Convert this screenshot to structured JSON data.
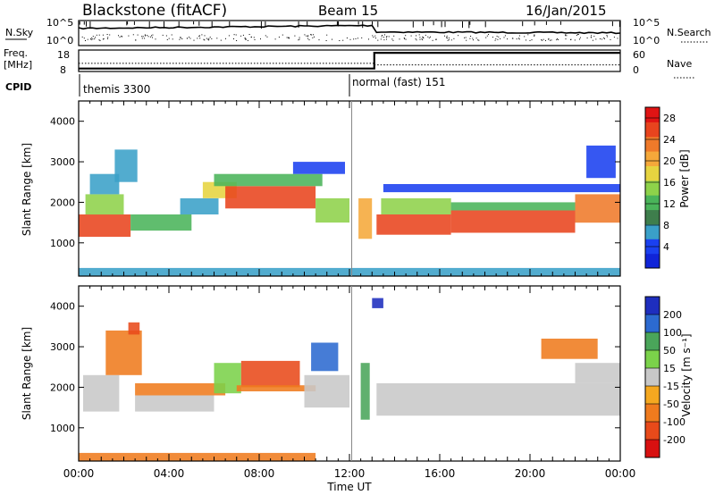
{
  "header": {
    "station": "Blackstone (fitACF)",
    "beam": "Beam 15",
    "date": "16/Jan/2015"
  },
  "noise_panel": {
    "left_label": "N.Sky",
    "right_label": "N.Search",
    "left_ticks": [
      "10^5",
      "10^0"
    ],
    "right_ticks": [
      "10^5",
      "10^0"
    ]
  },
  "freq_panel": {
    "left_label_1": "Freq.",
    "left_label_2": "[MHz]",
    "right_label": "Nave",
    "left_ticks": [
      "18",
      "8"
    ],
    "right_ticks": [
      "60",
      "0"
    ],
    "freq_series": {
      "x_hours": [
        0,
        13.1,
        13.1,
        24
      ],
      "values": [
        9.5,
        9.5,
        17.5,
        17.5
      ]
    },
    "nave_series": {
      "x_hours": [
        0,
        13.1,
        13.1,
        24
      ],
      "values": [
        25,
        25,
        20,
        20
      ]
    }
  },
  "cpid": {
    "label": "CPID",
    "modes": [
      {
        "name": "themis 3300",
        "start_hour": 0
      },
      {
        "name": "normal (fast) 151",
        "start_hour": 12.1
      }
    ]
  },
  "chart_data": [
    {
      "type": "heatmap",
      "name": "Power",
      "ylabel": "Slant Range [km]",
      "yticks": [
        1000,
        2000,
        3000,
        4000
      ],
      "ylim": [
        180,
        4500
      ],
      "xlim_hours": [
        0,
        24
      ],
      "xticks": [
        "00:00",
        "04:00",
        "08:00",
        "12:00",
        "16:00",
        "20:00",
        "00:00"
      ],
      "colorbar": {
        "label": "Power [dB]",
        "ticks": [
          "28",
          "24",
          "20",
          "16",
          "12",
          "8",
          "4"
        ],
        "range": [
          0,
          30
        ],
        "colors": [
          "#1024d8",
          "#1a40f0",
          "#3aa0c8",
          "#3e7e4c",
          "#4ab45a",
          "#8ed24a",
          "#e6d440",
          "#f5a83a",
          "#ef7a2a",
          "#e8441e",
          "#e01414"
        ]
      },
      "bands": [
        {
          "start": 0.0,
          "end": 2.3,
          "range_start": 1150,
          "range_end": 1700,
          "value": 27
        },
        {
          "start": 0.3,
          "end": 2.0,
          "range_start": 1700,
          "range_end": 2200,
          "value": 14
        },
        {
          "start": 0.5,
          "end": 1.8,
          "range_start": 2200,
          "range_end": 2700,
          "value": 7
        },
        {
          "start": 1.6,
          "end": 2.6,
          "range_start": 2500,
          "range_end": 3300,
          "value": 6
        },
        {
          "start": 2.3,
          "end": 5.0,
          "range_start": 1300,
          "range_end": 1700,
          "value": 12
        },
        {
          "start": 4.5,
          "end": 6.2,
          "range_start": 1700,
          "range_end": 2100,
          "value": 8
        },
        {
          "start": 5.5,
          "end": 7.0,
          "range_start": 2100,
          "range_end": 2500,
          "value": 19
        },
        {
          "start": 6.5,
          "end": 10.5,
          "range_start": 1850,
          "range_end": 2400,
          "value": 26
        },
        {
          "start": 6.0,
          "end": 10.8,
          "range_start": 2400,
          "range_end": 2700,
          "value": 11
        },
        {
          "start": 9.5,
          "end": 11.8,
          "range_start": 2700,
          "range_end": 3000,
          "value": 5
        },
        {
          "start": 10.5,
          "end": 12.0,
          "range_start": 1500,
          "range_end": 2100,
          "value": 16
        },
        {
          "start": 12.4,
          "end": 13.0,
          "range_start": 1100,
          "range_end": 2100,
          "value": 20
        },
        {
          "start": 13.2,
          "end": 16.5,
          "range_start": 1200,
          "range_end": 1700,
          "value": 27
        },
        {
          "start": 13.4,
          "end": 16.5,
          "range_start": 1700,
          "range_end": 2100,
          "value": 14
        },
        {
          "start": 16.5,
          "end": 22.0,
          "range_start": 1250,
          "range_end": 1800,
          "value": 25
        },
        {
          "start": 16.5,
          "end": 22.0,
          "range_start": 1800,
          "range_end": 2000,
          "value": 12
        },
        {
          "start": 22.0,
          "end": 24.0,
          "range_start": 1500,
          "range_end": 2200,
          "value": 22
        },
        {
          "start": 13.5,
          "end": 24.0,
          "range_start": 2250,
          "range_end": 2450,
          "value": 4
        },
        {
          "start": 22.5,
          "end": 23.8,
          "range_start": 2600,
          "range_end": 3400,
          "value": 4
        },
        {
          "start": 0.0,
          "end": 24.0,
          "range_start": 180,
          "range_end": 380,
          "value": 6
        }
      ]
    },
    {
      "type": "heatmap",
      "name": "Velocity",
      "ylabel": "Slant Range [km]",
      "yticks": [
        1000,
        2000,
        3000,
        4000
      ],
      "ylim": [
        180,
        4500
      ],
      "xlim_hours": [
        0,
        24
      ],
      "xticks": [
        "00:00",
        "04:00",
        "08:00",
        "12:00",
        "16:00",
        "20:00",
        "00:00"
      ],
      "xlabel": "Time UT",
      "colorbar": {
        "label": "Velocity [m s⁻¹]",
        "ticks": [
          "200",
          "100",
          "50",
          "15",
          "-15",
          "-50",
          "-100",
          "-200"
        ],
        "colors": [
          "#1e2ebe",
          "#2c6ad0",
          "#4aa55a",
          "#7bd24a",
          "#c8c8c8",
          "#f5a820",
          "#ef7b1e",
          "#e84a1a",
          "#d81010"
        ]
      },
      "bands": [
        {
          "start": 0.2,
          "end": 1.8,
          "range_start": 1400,
          "range_end": 2300,
          "value": -10
        },
        {
          "start": 1.2,
          "end": 2.8,
          "range_start": 2300,
          "range_end": 3400,
          "value": -60
        },
        {
          "start": 2.2,
          "end": 2.7,
          "range_start": 3300,
          "range_end": 3600,
          "value": -180
        },
        {
          "start": 2.5,
          "end": 6.0,
          "range_start": 1400,
          "range_end": 1800,
          "value": -10
        },
        {
          "start": 2.5,
          "end": 6.5,
          "range_start": 1800,
          "range_end": 2100,
          "value": -60
        },
        {
          "start": 6.0,
          "end": 7.2,
          "range_start": 1850,
          "range_end": 2600,
          "value": 40
        },
        {
          "start": 7.2,
          "end": 9.8,
          "range_start": 2000,
          "range_end": 2650,
          "value": -130
        },
        {
          "start": 7.0,
          "end": 10.5,
          "range_start": 1900,
          "range_end": 2050,
          "value": -60
        },
        {
          "start": 10.0,
          "end": 12.0,
          "range_start": 1500,
          "range_end": 2300,
          "value": -5
        },
        {
          "start": 10.3,
          "end": 11.5,
          "range_start": 2400,
          "range_end": 3100,
          "value": 150
        },
        {
          "start": 12.5,
          "end": 12.9,
          "range_start": 1200,
          "range_end": 2600,
          "value": 60
        },
        {
          "start": 13.0,
          "end": 13.5,
          "range_start": 3950,
          "range_end": 4200,
          "value": 200
        },
        {
          "start": 13.2,
          "end": 24.0,
          "range_start": 1300,
          "range_end": 2100,
          "value": -5
        },
        {
          "start": 22.0,
          "end": 24.0,
          "range_start": 2100,
          "range_end": 2600,
          "value": -5
        },
        {
          "start": 20.5,
          "end": 23.0,
          "range_start": 2700,
          "range_end": 3200,
          "value": -55
        },
        {
          "start": 0.0,
          "end": 10.5,
          "range_start": 180,
          "range_end": 380,
          "value": -60
        }
      ]
    }
  ]
}
